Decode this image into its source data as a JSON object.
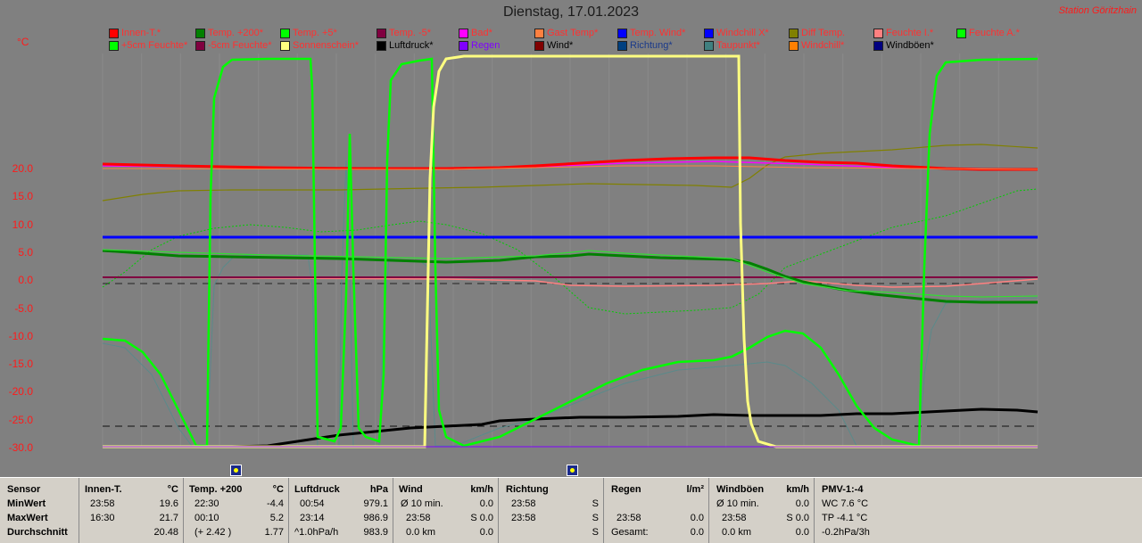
{
  "header": {
    "title": "Dienstag, 17.01.2023",
    "station": "Station Göritzhain",
    "unit": "°C"
  },
  "legend": [
    {
      "label": "Innen-T.*",
      "color": "#ff0000"
    },
    {
      "label": "Temp. +200*",
      "color": "#008000"
    },
    {
      "label": "Temp. +5*",
      "color": "#00ff00"
    },
    {
      "label": "Temp. -5*",
      "color": "#800040"
    },
    {
      "label": "Bad*",
      "color": "#ff00ff"
    },
    {
      "label": "Gast Temp*",
      "color": "#ff8040"
    },
    {
      "label": "Temp. Wind*",
      "color": "#0000ff"
    },
    {
      "label": "Windchill X*",
      "color": "#0000ff"
    },
    {
      "label": "Diff Temp.",
      "color": "#808000"
    },
    {
      "label": "Feuchte I.*",
      "color": "#ff8080"
    },
    {
      "label": "Feuchte A.*",
      "color": "#00ff00"
    },
    {
      "label": "+5cm Feuchte*",
      "color": "#00ff00"
    },
    {
      "label": "-5cm Feuchte*",
      "color": "#800040"
    },
    {
      "label": "Sonnenschein*",
      "color": "#ffff80"
    },
    {
      "label": "Luftdruck*",
      "color": "#000000"
    },
    {
      "label": "Regen",
      "color": "#8000ff"
    },
    {
      "label": "Wind*",
      "color": "#800000"
    },
    {
      "label": "Richtung*",
      "color": "#004080"
    },
    {
      "label": "Taupunkt*",
      "color": "#408080"
    },
    {
      "label": "Windchill*",
      "color": "#ff8000"
    },
    {
      "label": "Windböen*",
      "color": "#000080"
    }
  ],
  "yaxis": [
    "20.0",
    "15.0",
    "10.0",
    "5.0",
    "0.0",
    "-5.0",
    "-10.0",
    "-15.0",
    "-20.0",
    "-25.0",
    "-30.0"
  ],
  "table": {
    "sensor": {
      "h": "Sensor",
      "r1": "MinWert",
      "r2": "MaxWert",
      "r3": "Durchschnitt"
    },
    "innen": {
      "h": "Innen-T.",
      "u": "°C",
      "r1a": "23:58",
      "r1b": "19.6",
      "r2a": "16:30",
      "r2b": "21.7",
      "r3b": "20.48"
    },
    "temp": {
      "h": "Temp. +200",
      "u": "°C",
      "r1a": "22:30",
      "r1b": "-4.4",
      "r2a": "00:10",
      "r2b": "5.2",
      "r3a": "(+ 2.42 )",
      "r3b": "1.77"
    },
    "luft": {
      "h": "Luftdruck",
      "u": "hPa",
      "r1a": "00:54",
      "r1b": "979.1",
      "r2a": "23:14",
      "r2b": "986.9",
      "r3a": "^1.0hPa/h",
      "r3b": "983.9"
    },
    "wind": {
      "h": "Wind",
      "u": "km/h",
      "r1a": "Ø 10 min.",
      "r1b": "0.0",
      "r2a": "23:58",
      "r2b": "S 0.0",
      "r3a": "0.0 km",
      "r3b": "0.0"
    },
    "richt": {
      "h": "Richtung",
      "r1a": "23:58",
      "r1b": "S",
      "r2a": "23:58",
      "r2b": "S",
      "r3b": "S"
    },
    "regen": {
      "h": "Regen",
      "u": "l/m²",
      "r2a": "23:58",
      "r2b": "0.0",
      "r3a": "Gesamt:",
      "r3b": "0.0"
    },
    "boeen": {
      "h": "Windböen",
      "u": "km/h",
      "r1a": "Ø 10 min.",
      "r1b": "0.0",
      "r2a": "23:58",
      "r2b": "S 0.0",
      "r3a": "0.0 km",
      "r3b": "0.0"
    },
    "pmv": {
      "h": "PMV-1:-4",
      "r1": "WC 7.6 °C",
      "r2": "TP -4.1 °C",
      "r3": "-0.2hPa/3h"
    }
  }
}
